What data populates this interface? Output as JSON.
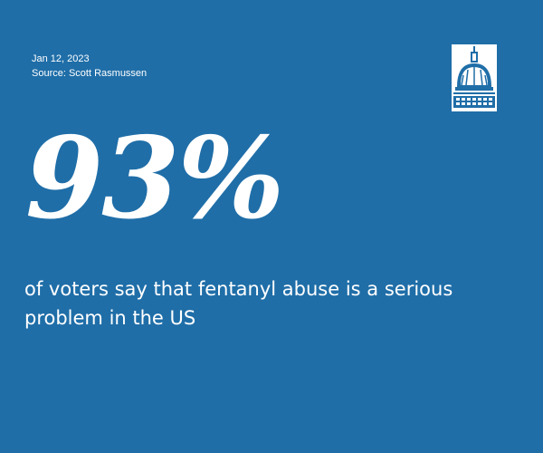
{
  "card": {
    "date": "Jan 12, 2023",
    "source": "Source: Scott Rasmussen",
    "stat": "93%",
    "caption": "of voters say that fentanyl abuse is a serious problem in the US",
    "logo_icon": "capitol-dome-icon"
  },
  "colors": {
    "background": "#1f6ea8",
    "text": "#ffffff"
  }
}
